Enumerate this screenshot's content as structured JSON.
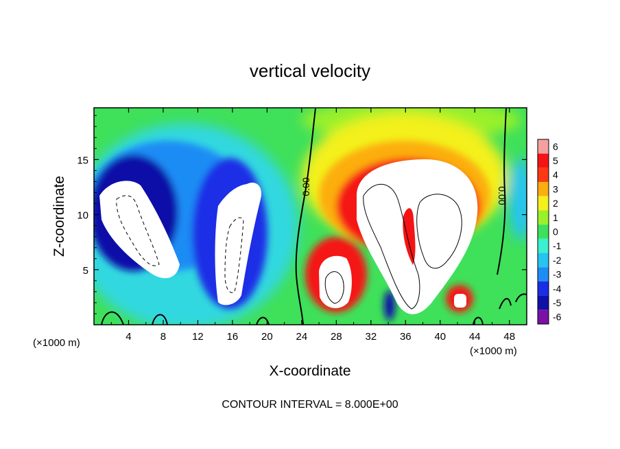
{
  "chart_data": {
    "type": "heatmap",
    "title": "vertical velocity",
    "xlabel": "X-coordinate",
    "ylabel": "Z-coordinate",
    "x_unit_left": "(×1000 m)",
    "x_unit_right": "(×1000 m)",
    "xlim": [
      0,
      50
    ],
    "ylim": [
      0,
      19.7
    ],
    "xticks": [
      4,
      8,
      12,
      16,
      20,
      24,
      28,
      32,
      36,
      40,
      44,
      48
    ],
    "yticks": [
      5,
      10,
      15
    ],
    "colorbar": {
      "ticks": [
        6,
        5,
        4,
        3,
        2,
        1,
        0,
        -1,
        -2,
        -3,
        -4,
        -5,
        -6
      ],
      "range": [
        -6,
        6
      ],
      "colors": {
        "-6": "#7a10a6",
        "-5": "#1010a8",
        "-4": "#1a2ee6",
        "-3": "#1e8cf5",
        "-2": "#26c4f0",
        "-1": "#3af0d0",
        "0": "#3fe05a",
        "1": "#9af02a",
        "2": "#f4f01c",
        "3": "#fcae10",
        "4": "#fc3a12",
        "5": "#f51414",
        "6": "#f4a0a0"
      }
    },
    "contour_labels": [
      "0.00",
      "0.00"
    ],
    "footnote": "CONTOUR INTERVAL = 8.000E+00"
  }
}
